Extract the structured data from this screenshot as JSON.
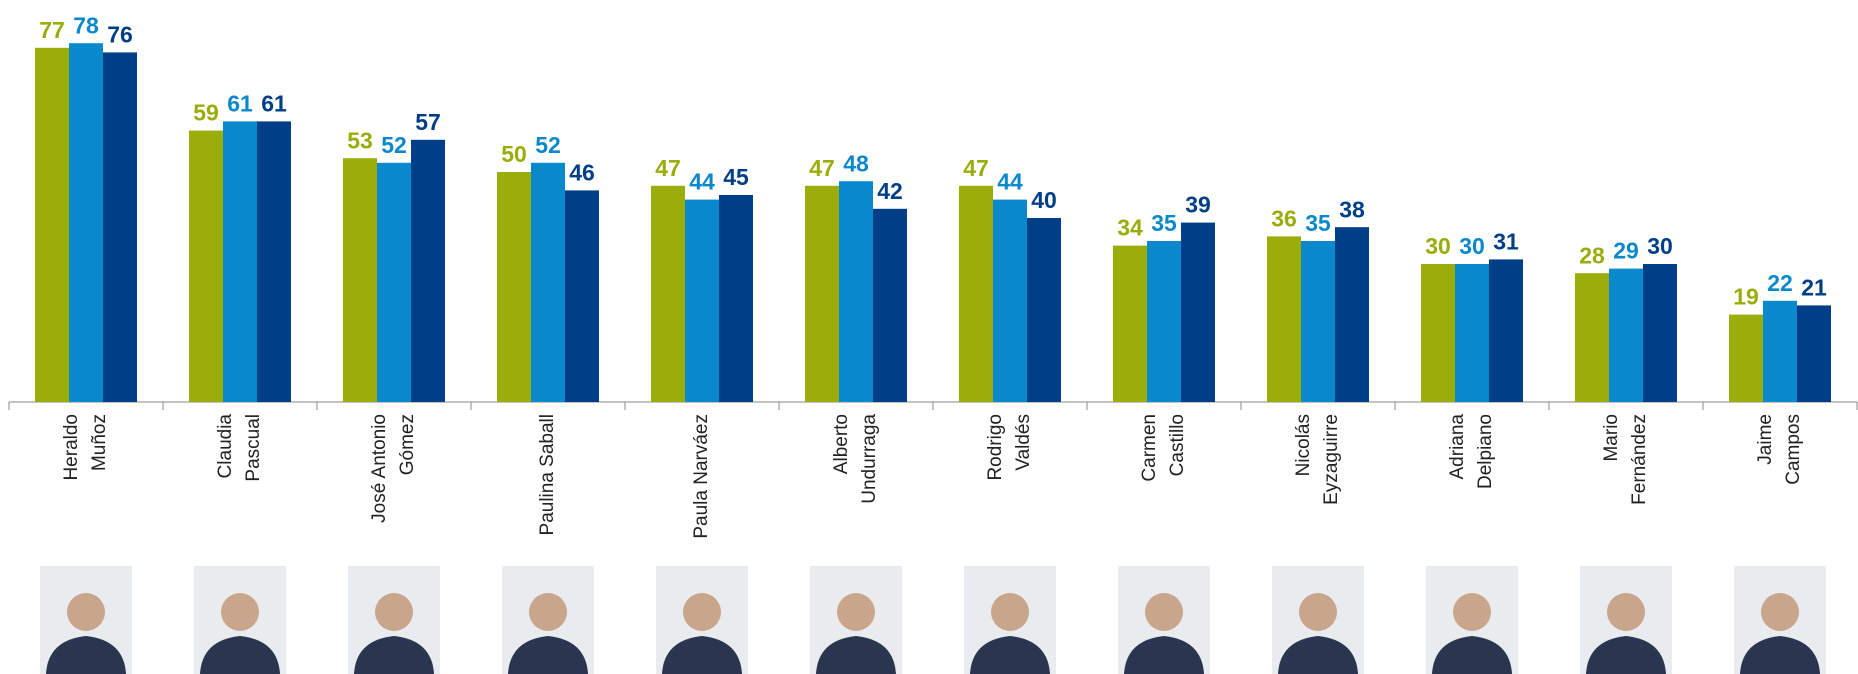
{
  "chart_data": {
    "type": "bar",
    "categories": [
      [
        "Heraldo",
        "Muñoz"
      ],
      [
        "Claudia",
        "Pascual"
      ],
      [
        "José Antonio",
        "Gómez"
      ],
      [
        "Paulina Saball"
      ],
      [
        "Paula Narváez"
      ],
      [
        "Alberto",
        "Undurraga"
      ],
      [
        "Rodrigo",
        "Valdés"
      ],
      [
        "Carmen",
        "Castillo"
      ],
      [
        "Nicolás",
        "Eyzaguirre"
      ],
      [
        "Adriana",
        "Delpiano"
      ],
      [
        "Mario",
        "Fernández"
      ],
      [
        "Jaime",
        "Campos"
      ]
    ],
    "series": [
      {
        "color": "#9aad0a",
        "values": [
          77,
          59,
          53,
          50,
          47,
          47,
          47,
          34,
          36,
          30,
          28,
          19
        ]
      },
      {
        "color": "#0a88cc",
        "values": [
          78,
          61,
          52,
          52,
          44,
          48,
          44,
          35,
          35,
          30,
          29,
          22
        ]
      },
      {
        "color": "#003f87",
        "values": [
          76,
          61,
          57,
          46,
          45,
          42,
          40,
          39,
          38,
          31,
          30,
          21
        ]
      }
    ],
    "ylim": [
      0,
      80
    ]
  }
}
